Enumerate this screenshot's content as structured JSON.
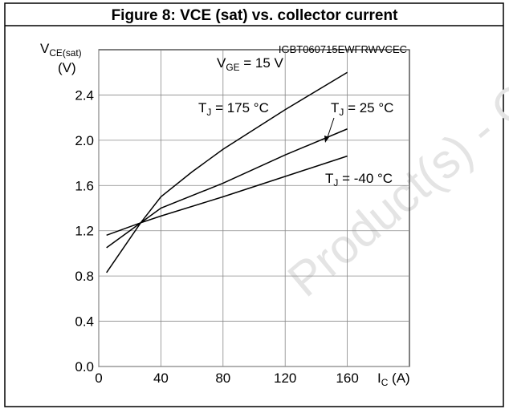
{
  "chart_data": {
    "type": "line",
    "title": "Figure 8: VCE (sat) vs. collector current",
    "code": "IGBT060715EWFRWVCEC",
    "watermark": "Product(s) - O",
    "ylabel": {
      "main": "V",
      "sub": "CE(sat)",
      "unit": "(V)"
    },
    "xlabel": {
      "main": "I",
      "sub": "C",
      "rest": " (A)"
    },
    "annotations": [
      {
        "main": "V",
        "sub": "GE",
        "rest": " = 15 V"
      },
      {
        "main": "T",
        "sub": "J",
        "rest": " = 175 °C"
      },
      {
        "main": "T",
        "sub": "J",
        "rest": " = 25 °C"
      },
      {
        "main": "T",
        "sub": "J",
        "rest": " = -40 °C"
      }
    ],
    "xlim": [
      0,
      200
    ],
    "ylim": [
      0,
      2.8
    ],
    "xticks": [
      0,
      40,
      80,
      120,
      160
    ],
    "yticks": [
      {
        "value": 0,
        "label": "0.0"
      },
      0.4,
      0.8,
      1.2,
      1.6,
      {
        "value": 2,
        "label": "2.0"
      },
      2.4
    ],
    "grid": true,
    "series": [
      {
        "color": "#000000",
        "x": [
          5,
          27,
          40,
          60,
          80,
          120,
          160
        ],
        "values": [
          0.83,
          1.27,
          1.5,
          1.72,
          1.92,
          2.27,
          2.6
        ]
      },
      {
        "color": "#000000",
        "x": [
          5,
          27,
          40,
          80,
          120,
          160
        ],
        "values": [
          1.05,
          1.27,
          1.4,
          1.62,
          1.87,
          2.1
        ]
      },
      {
        "color": "#000000",
        "x": [
          5,
          27,
          40,
          80,
          120,
          160
        ],
        "values": [
          1.16,
          1.27,
          1.33,
          1.5,
          1.68,
          1.86
        ]
      }
    ]
  }
}
